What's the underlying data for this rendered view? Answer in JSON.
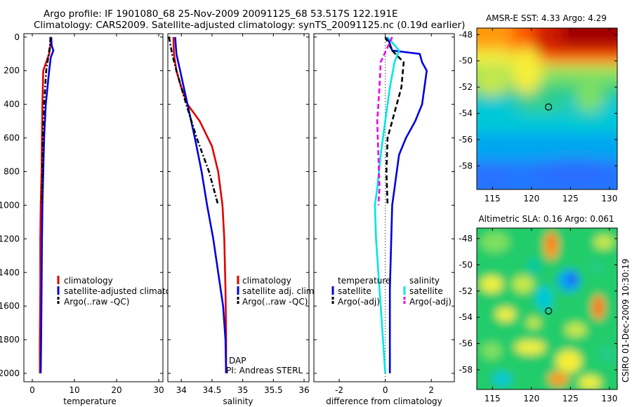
{
  "title": {
    "line1": "Argo profile: IF 1901080_68 25-Nov-2009 20091125_68 53.517S 122.191E",
    "line2": "Climatology: CARS2009. Satellite-adjusted climatology: synTS_20091125.nc (0.19d earlier)"
  },
  "stamp": "CSIRO 01-Dec-2009 10:30:19",
  "chart_data": [
    {
      "type": "line",
      "name": "temperature",
      "xlabel": "temperature",
      "xlim": [
        -2,
        31
      ],
      "xticks": [
        0,
        10,
        20,
        30
      ],
      "ylim": [
        2050,
        -20
      ],
      "yticks": [
        0,
        200,
        400,
        600,
        800,
        1000,
        1200,
        1400,
        1600,
        1800,
        2000
      ],
      "series": [
        {
          "name": "climatology",
          "color": "#e00000",
          "dash": "",
          "x": [
            4.4,
            4.3,
            4.0,
            3.3,
            2.6,
            2.4,
            2.3,
            2.2,
            2.0,
            1.9,
            1.9,
            1.8,
            1.8
          ],
          "y": [
            0,
            50,
            100,
            150,
            200,
            400,
            600,
            800,
            1000,
            1200,
            1500,
            1800,
            2000
          ]
        },
        {
          "name": "satellite-adjusted climatology",
          "color": "#0000e0",
          "dash": "",
          "x": [
            4.5,
            4.6,
            5.0,
            4.4,
            4.0,
            3.2,
            2.8,
            2.6,
            2.4,
            2.3,
            2.2,
            2.1,
            2.0
          ],
          "y": [
            0,
            50,
            80,
            120,
            200,
            400,
            600,
            800,
            1000,
            1200,
            1500,
            1800,
            2000
          ]
        },
        {
          "name": "Argo(..raw -QC)",
          "color": "#000000",
          "dash": "7,3,2,3",
          "x": [
            4.3,
            4.2,
            3.9,
            3.6,
            3.3,
            2.8,
            2.5,
            2.4,
            2.3
          ],
          "y": [
            0,
            50,
            100,
            150,
            200,
            400,
            600,
            800,
            1000
          ]
        }
      ],
      "legend": [
        "climatology",
        "satellite-adjusted climatology",
        "Argo(..raw -QC)"
      ]
    },
    {
      "type": "line",
      "name": "salinity",
      "xlabel": "salinity",
      "xlim": [
        33.78,
        36.08
      ],
      "xticks": [
        34,
        34.5,
        35,
        35.5,
        36
      ],
      "ylim": [
        2050,
        -20
      ],
      "series": [
        {
          "name": "climatology",
          "color": "#e00000",
          "dash": "",
          "x": [
            33.87,
            33.88,
            33.92,
            34.0,
            34.1,
            34.3,
            34.5,
            34.6,
            34.67,
            34.7,
            34.72,
            34.73,
            34.73
          ],
          "y": [
            0,
            100,
            200,
            300,
            400,
            500,
            650,
            800,
            1000,
            1200,
            1500,
            1800,
            2000
          ]
        },
        {
          "name": "satellite adj. clim.",
          "color": "#0000e0",
          "dash": "",
          "x": [
            33.9,
            33.92,
            33.98,
            34.1,
            34.22,
            34.33,
            34.42,
            34.52,
            34.6,
            34.68,
            34.72,
            34.73
          ],
          "y": [
            0,
            100,
            200,
            400,
            600,
            800,
            1000,
            1200,
            1400,
            1600,
            1800,
            2000
          ]
        },
        {
          "name": "Argo(..raw -QC)",
          "color": "#000000",
          "dash": "7,3,2,3",
          "x": [
            33.8,
            33.85,
            33.92,
            34.08,
            34.25,
            34.45,
            34.6
          ],
          "y": [
            0,
            100,
            200,
            400,
            600,
            800,
            1000
          ]
        }
      ],
      "legend": [
        "climatology",
        "satellite adj. clim.",
        "Argo(..raw -QC)"
      ],
      "annotations": [
        "DAP",
        "PI: Andreas STERL"
      ]
    },
    {
      "type": "line",
      "name": "difference",
      "xlabel": "difference from climatology",
      "xlim": [
        -3.1,
        3.0
      ],
      "xticks": [
        -2,
        0,
        2
      ],
      "ylim": [
        2050,
        -20
      ],
      "series": [
        {
          "name": "temperature satellite",
          "color": "#0000e0",
          "dash": "",
          "x": [
            0.1,
            0.3,
            1.5,
            1.6,
            1.8,
            1.7,
            1.6,
            1.3,
            0.9,
            0.6,
            0.5,
            0.4,
            0.3,
            0.2,
            0.2
          ],
          "y": [
            0,
            80,
            100,
            150,
            200,
            300,
            400,
            500,
            600,
            700,
            800,
            900,
            1000,
            1500,
            2000
          ]
        },
        {
          "name": "temperature Argo(-adj)",
          "color": "#000000",
          "dash": "7,4",
          "x": [
            0.0,
            0.3,
            0.8,
            0.7,
            0.5,
            0.3,
            0.1,
            0.05,
            0.1
          ],
          "y": [
            0,
            80,
            150,
            300,
            400,
            500,
            600,
            800,
            1000
          ]
        },
        {
          "name": "salinity satellite",
          "color": "#00e5e5",
          "dash": "",
          "x": [
            0.1,
            0.6,
            0.4,
            0.2,
            0.0,
            -0.2,
            -0.35,
            -0.45,
            -0.4,
            -0.3,
            -0.2,
            -0.1,
            0.0
          ],
          "y": [
            0,
            80,
            150,
            300,
            500,
            700,
            900,
            1000,
            1200,
            1400,
            1600,
            1800,
            2000
          ]
        },
        {
          "name": "salinity Argo(-adj)",
          "color": "#ee00ee",
          "dash": "7,4",
          "x": [
            0.3,
            -0.2,
            -0.25,
            -0.35,
            -0.3,
            -0.25,
            -0.3
          ],
          "y": [
            0,
            150,
            300,
            500,
            700,
            900,
            1000
          ]
        }
      ],
      "legend_headers": [
        "temperature",
        "salinity"
      ],
      "legend": [
        "satellite",
        "Argo(-adj)",
        "satellite",
        "Argo(-adj)"
      ]
    },
    {
      "type": "heatmap",
      "name": "sst_map",
      "title": "AMSR-E SST: 4.33 Argo: 4.29",
      "xlim": [
        113,
        131
      ],
      "ylim": [
        -59.8,
        -47.5
      ],
      "xticks": [
        115,
        120,
        125,
        130
      ],
      "yticks": [
        -48,
        -50,
        -52,
        -54,
        -56,
        -58
      ],
      "marker": {
        "lon": 122.191,
        "lat": -53.517
      }
    },
    {
      "type": "heatmap",
      "name": "sla_map",
      "title": "Altimetric SLA: 0.16 Argo: 0.061",
      "xlim": [
        113,
        131
      ],
      "ylim": [
        -59.5,
        -47.2
      ],
      "xticks": [
        115,
        120,
        125,
        130
      ],
      "yticks": [
        -48,
        -50,
        -52,
        -54,
        -56,
        -58
      ],
      "marker": {
        "lon": 122.191,
        "lat": -53.517
      }
    }
  ]
}
